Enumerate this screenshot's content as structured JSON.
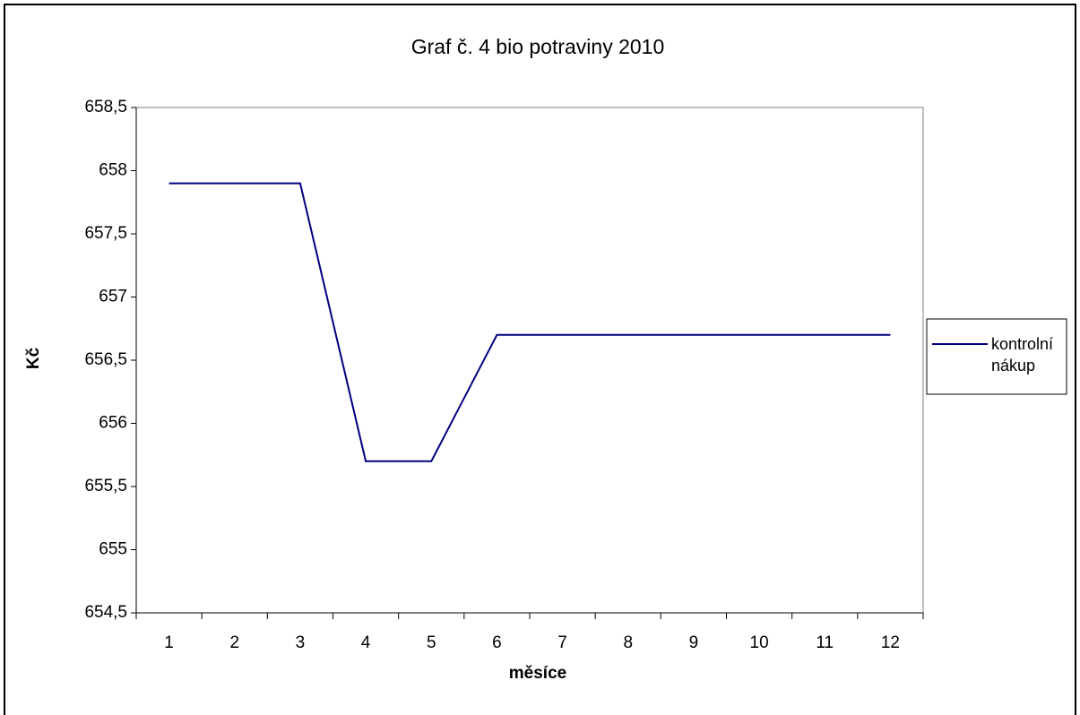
{
  "chart_data": {
    "type": "line",
    "title": "Graf č. 4 bio potraviny 2010",
    "x_label": "měsíce",
    "y_label": "Kč",
    "categories": [
      "1",
      "2",
      "3",
      "4",
      "5",
      "6",
      "7",
      "8",
      "9",
      "10",
      "11",
      "12"
    ],
    "series": [
      {
        "name": "kontrolní nákup",
        "color": "#000080",
        "values": [
          657.9,
          657.9,
          657.9,
          655.7,
          655.7,
          656.7,
          656.7,
          656.7,
          656.7,
          656.7,
          656.7,
          656.7
        ]
      }
    ],
    "ylim": [
      654.5,
      658.5
    ],
    "yticks": [
      {
        "value": 654.5,
        "label": "654,5"
      },
      655,
      {
        "value": 655.5,
        "label": "655,5"
      },
      656,
      {
        "value": 656.5,
        "label": "656,5"
      },
      657,
      {
        "value": 657.5,
        "label": "657,5"
      },
      658,
      {
        "value": 658.5,
        "label": "658,5"
      }
    ],
    "legend": "right"
  }
}
